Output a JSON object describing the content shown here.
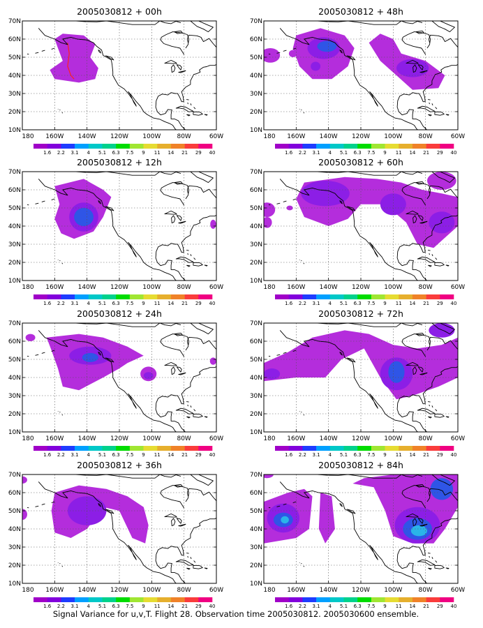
{
  "figure": {
    "caption": "Signal Variance for u,v,T. Flight 28. Observation time 2005030812. 2005030600 ensemble."
  },
  "axes": {
    "lat_labels": [
      "10N",
      "20N",
      "30N",
      "40N",
      "50N",
      "60N",
      "70N"
    ],
    "lon_labels": [
      "180",
      "160W",
      "140W",
      "120W",
      "100W",
      "80W",
      "60W"
    ]
  },
  "colorbar": {
    "labels": [
      "1.6",
      "2.2",
      "3.1",
      "4",
      "5.1",
      "6.3",
      "7.5",
      "9",
      "11",
      "14",
      "21",
      "29",
      "40"
    ],
    "colors": [
      "#a000c8",
      "#8200dc",
      "#1e3cff",
      "#00a0ff",
      "#00c8c8",
      "#00d28c",
      "#00dc00",
      "#a0e632",
      "#e6dc32",
      "#e6af2d",
      "#f08228",
      "#fa3c3c",
      "#f00082"
    ]
  },
  "panels": [
    {
      "title": "2005030812 + 00h"
    },
    {
      "title": "2005030812 + 48h"
    },
    {
      "title": "2005030812 + 12h"
    },
    {
      "title": "2005030812 + 60h"
    },
    {
      "title": "2005030812 + 24h"
    },
    {
      "title": "2005030812 + 72h"
    },
    {
      "title": "2005030812 + 84h"
    },
    {
      "title": "2005030812 + 36h"
    }
  ],
  "colors": {
    "fill_light": "#b42ddc",
    "fill_mid": "#8c1ee6",
    "fill_blue": "#2f55e6",
    "fill_cyan": "#2ab4e8",
    "fill_pale": "#7fd6ee",
    "coast": "#000000",
    "grid": "#555555",
    "mark": "#ff2020"
  }
}
